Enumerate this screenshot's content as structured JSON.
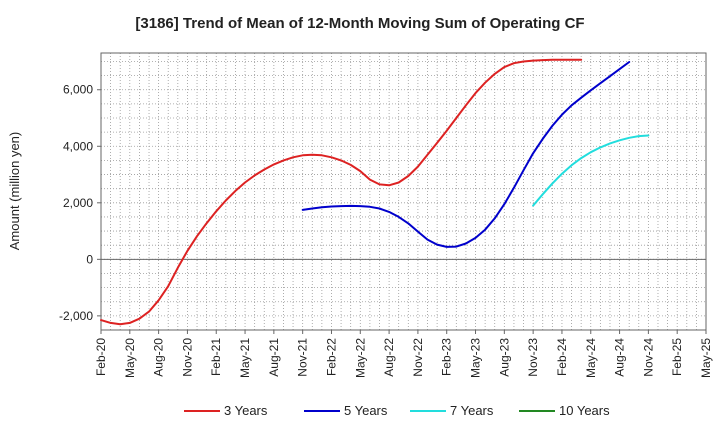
{
  "chart_data": {
    "type": "line",
    "title": "[3186]  Trend of Mean of 12-Month Moving Sum of Operating CF",
    "xlabel": "",
    "ylabel": "Amount (million yen)",
    "ylim": [
      -2500,
      7300
    ],
    "yticks": [
      -2000,
      0,
      2000,
      4000,
      6000
    ],
    "ytick_labels": [
      "-2,000",
      "0",
      "2,000",
      "4,000",
      "6,000"
    ],
    "x_categories": [
      "Feb-20",
      "May-20",
      "Aug-20",
      "Nov-20",
      "Feb-21",
      "May-21",
      "Aug-21",
      "Nov-21",
      "Feb-22",
      "May-22",
      "Aug-22",
      "Nov-22",
      "Feb-23",
      "May-23",
      "Aug-23",
      "Nov-23",
      "Feb-24",
      "May-24",
      "Aug-24",
      "Nov-24",
      "Feb-25",
      "May-25"
    ],
    "grid": true,
    "legend_position": "bottom",
    "series": [
      {
        "name": "3 Years",
        "color": "#dd2222",
        "points": [
          [
            0,
            -2150
          ],
          [
            1,
            -2250
          ],
          [
            2,
            -2300
          ],
          [
            3,
            -2250
          ],
          [
            4,
            -2100
          ],
          [
            5,
            -1850
          ],
          [
            6,
            -1450
          ],
          [
            7,
            -950
          ],
          [
            8,
            -300
          ],
          [
            9,
            300
          ],
          [
            10,
            820
          ],
          [
            11,
            1280
          ],
          [
            12,
            1700
          ],
          [
            13,
            2080
          ],
          [
            14,
            2420
          ],
          [
            15,
            2720
          ],
          [
            16,
            2970
          ],
          [
            17,
            3180
          ],
          [
            18,
            3360
          ],
          [
            19,
            3500
          ],
          [
            20,
            3610
          ],
          [
            21,
            3680
          ],
          [
            22,
            3700
          ],
          [
            23,
            3680
          ],
          [
            24,
            3610
          ],
          [
            25,
            3500
          ],
          [
            26,
            3340
          ],
          [
            27,
            3120
          ],
          [
            28,
            2820
          ],
          [
            29,
            2650
          ],
          [
            30,
            2620
          ],
          [
            31,
            2720
          ],
          [
            32,
            2950
          ],
          [
            33,
            3280
          ],
          [
            34,
            3700
          ],
          [
            35,
            4120
          ],
          [
            36,
            4550
          ],
          [
            37,
            5000
          ],
          [
            38,
            5450
          ],
          [
            39,
            5880
          ],
          [
            40,
            6250
          ],
          [
            41,
            6560
          ],
          [
            42,
            6800
          ],
          [
            43,
            6940
          ],
          [
            44,
            7000
          ],
          [
            45,
            7030
          ],
          [
            46,
            7050
          ],
          [
            47,
            7060
          ],
          [
            48,
            7060
          ],
          [
            49,
            7060
          ],
          [
            50,
            7060
          ]
        ]
      },
      {
        "name": "5 Years",
        "color": "#0000cc",
        "points": [
          [
            21,
            1750
          ],
          [
            22,
            1800
          ],
          [
            23,
            1840
          ],
          [
            24,
            1870
          ],
          [
            25,
            1885
          ],
          [
            26,
            1890
          ],
          [
            27,
            1885
          ],
          [
            28,
            1860
          ],
          [
            29,
            1800
          ],
          [
            30,
            1680
          ],
          [
            31,
            1500
          ],
          [
            32,
            1270
          ],
          [
            33,
            980
          ],
          [
            34,
            700
          ],
          [
            35,
            520
          ],
          [
            36,
            440
          ],
          [
            37,
            450
          ],
          [
            38,
            560
          ],
          [
            39,
            760
          ],
          [
            40,
            1050
          ],
          [
            41,
            1450
          ],
          [
            42,
            1950
          ],
          [
            43,
            2530
          ],
          [
            44,
            3150
          ],
          [
            45,
            3750
          ],
          [
            46,
            4260
          ],
          [
            47,
            4720
          ],
          [
            48,
            5120
          ],
          [
            49,
            5450
          ],
          [
            50,
            5720
          ],
          [
            51,
            5980
          ],
          [
            52,
            6230
          ],
          [
            53,
            6480
          ],
          [
            54,
            6730
          ],
          [
            55,
            6980
          ]
        ]
      },
      {
        "name": "7 Years",
        "color": "#22dddd",
        "points": [
          [
            45,
            1900
          ],
          [
            46,
            2300
          ],
          [
            47,
            2680
          ],
          [
            48,
            3030
          ],
          [
            49,
            3330
          ],
          [
            50,
            3580
          ],
          [
            51,
            3790
          ],
          [
            52,
            3960
          ],
          [
            53,
            4100
          ],
          [
            54,
            4210
          ],
          [
            55,
            4300
          ],
          [
            56,
            4360
          ],
          [
            57,
            4380
          ]
        ]
      },
      {
        "name": "10 Years",
        "color": "#228822",
        "points": []
      }
    ]
  }
}
